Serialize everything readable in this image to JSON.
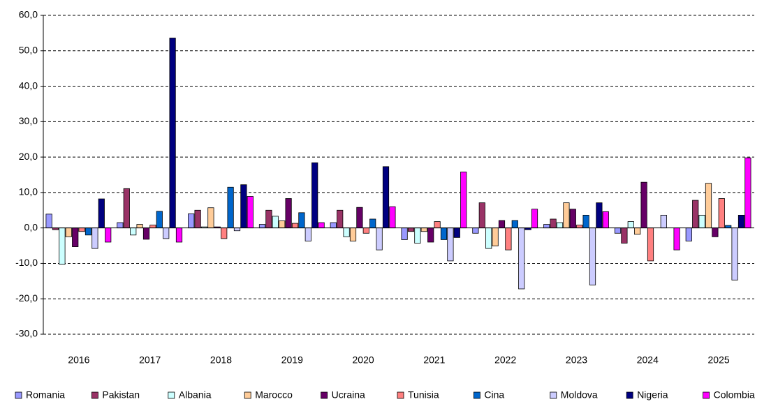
{
  "chart_data": {
    "type": "bar",
    "categories": [
      "2016",
      "2017",
      "2018",
      "2019",
      "2020",
      "2021",
      "2022",
      "2023",
      "2024",
      "2025"
    ],
    "series": [
      {
        "name": "Romania",
        "color": "#9999ff",
        "values": [
          3.9,
          1.5,
          4.0,
          1.0,
          1.5,
          -3.3,
          -1.5,
          1.0,
          -1.5,
          -3.7
        ]
      },
      {
        "name": "Pakistan",
        "color": "#993366",
        "values": [
          -0.5,
          11.1,
          5.0,
          5.0,
          5.0,
          -1.0,
          7.1,
          2.5,
          -4.3,
          7.8
        ]
      },
      {
        "name": "Albania",
        "color": "#ccffff",
        "values": [
          -10.3,
          -2.0,
          0.3,
          3.3,
          -2.5,
          -4.3,
          -5.8,
          1.5,
          1.8,
          3.6
        ]
      },
      {
        "name": "Marocco",
        "color": "#ffcc99",
        "values": [
          -2.5,
          1.0,
          5.7,
          2.0,
          -3.7,
          -1.0,
          -5.1,
          7.1,
          -1.8,
          12.6
        ]
      },
      {
        "name": "Ucraina",
        "color": "#660066",
        "values": [
          -5.3,
          -3.2,
          0.3,
          8.3,
          5.8,
          -4.0,
          2.1,
          5.3,
          12.9,
          -2.5
        ]
      },
      {
        "name": "Tunisia",
        "color": "#ff8080",
        "values": [
          -1.0,
          0.8,
          -3.0,
          1.3,
          -1.5,
          1.8,
          -6.2,
          0.8,
          -9.3,
          8.3
        ]
      },
      {
        "name": "Cina",
        "color": "#0066cc",
        "values": [
          -2.0,
          4.7,
          11.5,
          4.3,
          2.5,
          -3.3,
          2.1,
          3.6,
          0,
          0.7
        ]
      },
      {
        "name": "Moldova",
        "color": "#ccccff",
        "values": [
          -5.8,
          -3.0,
          -0.8,
          -3.7,
          -6.2,
          -9.3,
          -17.2,
          -16.1,
          3.6,
          -14.7
        ]
      },
      {
        "name": "Nigeria",
        "color": "#000080",
        "values": [
          8.2,
          53.6,
          12.2,
          18.4,
          17.3,
          -2.7,
          -0.5,
          7.1,
          0,
          3.6
        ]
      },
      {
        "name": "Colombia",
        "color": "#ff00ff",
        "values": [
          -4.0,
          -4.0,
          8.9,
          1.5,
          6.0,
          15.8,
          5.3,
          4.6,
          -6.2,
          19.8
        ]
      }
    ],
    "ylim": [
      -30,
      60
    ],
    "yticks": [
      {
        "value": -30,
        "label": "-30,0"
      },
      {
        "value": -20,
        "label": "-20,0"
      },
      {
        "value": -10,
        "label": "-10,0"
      },
      {
        "value": 0,
        "label": "0,0"
      },
      {
        "value": 10,
        "label": "10,0"
      },
      {
        "value": 20,
        "label": "20,0"
      },
      {
        "value": 30,
        "label": "30,0"
      },
      {
        "value": 40,
        "label": "40,0"
      },
      {
        "value": 50,
        "label": "50,0"
      },
      {
        "value": 60,
        "label": "60,0"
      }
    ],
    "grid": true,
    "legend": "bottom"
  }
}
